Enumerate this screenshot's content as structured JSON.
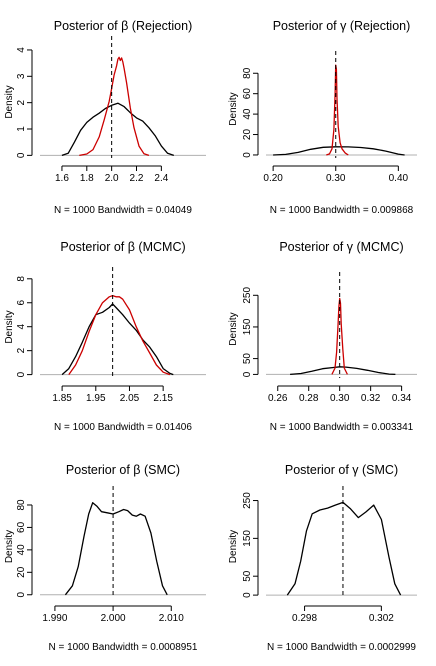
{
  "chart_data": [
    {
      "type": "line",
      "title_prefix": "Posterior of",
      "param": "β",
      "method": "(Rejection)",
      "xlabel": "N = 1000   Bandwidth = 0.04049",
      "ylabel": "Density",
      "xlim": [
        1.52,
        2.55
      ],
      "ylim": [
        -0.1,
        4.15
      ],
      "xticks": [
        {
          "v": 1.6,
          "label": "1.6"
        },
        {
          "v": 1.8,
          "label": "1.8"
        },
        {
          "v": 2.0,
          "label": "2.0"
        },
        {
          "v": 2.2,
          "label": "2.2"
        },
        {
          "v": 2.4,
          "label": "2.4"
        }
      ],
      "yticks": [
        {
          "v": 0,
          "label": "0"
        },
        {
          "v": 1,
          "label": "1"
        },
        {
          "v": 2,
          "label": "2"
        },
        {
          "v": 3,
          "label": "3"
        },
        {
          "v": 4,
          "label": "4"
        }
      ],
      "true_value": 2.0,
      "series": [
        {
          "name": "prior",
          "color": "#000000",
          "x": [
            1.6,
            1.65,
            1.7,
            1.75,
            1.8,
            1.85,
            1.9,
            1.95,
            2.0,
            2.05,
            2.1,
            2.15,
            2.2,
            2.25,
            2.3,
            2.35,
            2.4,
            2.45,
            2.5
          ],
          "y": [
            0.0,
            0.08,
            0.5,
            0.95,
            1.25,
            1.45,
            1.6,
            1.78,
            1.9,
            1.98,
            1.85,
            1.62,
            1.42,
            1.3,
            1.05,
            0.75,
            0.35,
            0.08,
            0.0
          ]
        },
        {
          "name": "posterior",
          "color": "#cc0000",
          "x": [
            1.74,
            1.8,
            1.85,
            1.9,
            1.94,
            1.98,
            2.0,
            2.02,
            2.04,
            2.05,
            2.06,
            2.07,
            2.08,
            2.09,
            2.1,
            2.12,
            2.15,
            2.18,
            2.22,
            2.26,
            2.3
          ],
          "y": [
            0.0,
            0.05,
            0.22,
            0.7,
            1.35,
            2.05,
            2.55,
            3.05,
            3.4,
            3.65,
            3.72,
            3.6,
            3.7,
            3.55,
            3.3,
            2.75,
            1.8,
            1.05,
            0.35,
            0.06,
            0.0
          ]
        }
      ]
    },
    {
      "type": "line",
      "title_prefix": "Posterior of",
      "param": "γ",
      "method": "(Rejection)",
      "xlabel": "N = 1000   Bandwidth = 0.009868",
      "ylabel": "Density",
      "xlim": [
        0.195,
        0.425
      ],
      "ylim": [
        -2,
        92
      ],
      "xticks": [
        {
          "v": 0.2,
          "label": "0.20"
        },
        {
          "v": 0.3,
          "label": "0.30"
        },
        {
          "v": 0.4,
          "label": "0.40"
        }
      ],
      "yticks": [
        {
          "v": 0,
          "label": "0"
        },
        {
          "v": 20,
          "label": "20"
        },
        {
          "v": 40,
          "label": "40"
        },
        {
          "v": 60,
          "label": "60"
        },
        {
          "v": 80,
          "label": "80"
        }
      ],
      "true_value": 0.3,
      "series": [
        {
          "name": "prior",
          "color": "#000000",
          "x": [
            0.2,
            0.22,
            0.24,
            0.26,
            0.28,
            0.3,
            0.32,
            0.34,
            0.36,
            0.38,
            0.4,
            0.41
          ],
          "y": [
            0.0,
            0.5,
            2.5,
            5.5,
            7.5,
            8.0,
            7.9,
            7.3,
            6.0,
            3.8,
            0.8,
            0.0
          ]
        },
        {
          "name": "posterior",
          "color": "#cc0000",
          "x": [
            0.285,
            0.29,
            0.294,
            0.297,
            0.299,
            0.3,
            0.301,
            0.302,
            0.304,
            0.307,
            0.31,
            0.315,
            0.32
          ],
          "y": [
            0.0,
            1.0,
            6.0,
            25.0,
            60.0,
            88.0,
            84.0,
            55.0,
            28.0,
            12.0,
            6.0,
            2.0,
            0.0
          ]
        }
      ]
    },
    {
      "type": "line",
      "title_prefix": "Posterior of",
      "param": "β",
      "method": "(MCMC)",
      "xlabel": "N = 1000   Bandwidth = 0.01406",
      "ylabel": "Density",
      "xlim": [
        1.82,
        2.2
      ],
      "ylim": [
        -0.2,
        8.15
      ],
      "xticks": [
        {
          "v": 1.85,
          "label": "1.85"
        },
        {
          "v": 1.95,
          "label": "1.95"
        },
        {
          "v": 2.05,
          "label": "2.05"
        },
        {
          "v": 2.15,
          "label": "2.15"
        }
      ],
      "yticks": [
        {
          "v": 0,
          "label": "0"
        },
        {
          "v": 2,
          "label": "2"
        },
        {
          "v": 4,
          "label": "4"
        },
        {
          "v": 6,
          "label": "6"
        },
        {
          "v": 8,
          "label": "8"
        }
      ],
      "true_value": 2.0,
      "series": [
        {
          "name": "prior",
          "color": "#000000",
          "x": [
            1.85,
            1.87,
            1.89,
            1.91,
            1.93,
            1.95,
            1.97,
            1.99,
            2.0,
            2.01,
            2.03,
            2.05,
            2.07,
            2.09,
            2.11,
            2.13,
            2.15,
            2.17,
            2.18
          ],
          "y": [
            0.0,
            0.5,
            1.5,
            2.7,
            4.0,
            5.0,
            5.2,
            5.6,
            5.9,
            5.6,
            5.0,
            4.3,
            3.7,
            2.9,
            2.3,
            1.5,
            0.5,
            0.1,
            0.0
          ]
        },
        {
          "name": "posterior",
          "color": "#cc0000",
          "x": [
            1.87,
            1.89,
            1.91,
            1.93,
            1.95,
            1.97,
            1.99,
            2.0,
            2.01,
            2.02,
            2.03,
            2.05,
            2.07,
            2.09,
            2.11,
            2.13,
            2.15,
            2.17
          ],
          "y": [
            0.0,
            0.8,
            2.0,
            3.6,
            5.0,
            6.0,
            6.5,
            6.6,
            6.5,
            6.5,
            6.3,
            5.4,
            4.0,
            2.8,
            1.8,
            0.8,
            0.2,
            0.0
          ]
        }
      ]
    },
    {
      "type": "line",
      "title_prefix": "Posterior of",
      "param": "γ",
      "method": "(MCMC)",
      "xlabel": "N = 1000   Bandwidth = 0.003341",
      "ylabel": "Density",
      "xlim": [
        0.255,
        0.348
      ],
      "ylim": [
        -5,
        292
      ],
      "xticks": [
        {
          "v": 0.26,
          "label": "0.26"
        },
        {
          "v": 0.28,
          "label": "0.28"
        },
        {
          "v": 0.3,
          "label": "0.30"
        },
        {
          "v": 0.32,
          "label": "0.32"
        },
        {
          "v": 0.34,
          "label": "0.34"
        }
      ],
      "yticks": [
        {
          "v": 0,
          "label": "0"
        },
        {
          "v": 50,
          "label": "50"
        },
        {
          "v": 150,
          "label": "150"
        },
        {
          "v": 250,
          "label": "250"
        }
      ],
      "true_value": 0.3,
      "series": [
        {
          "name": "prior",
          "color": "#000000",
          "x": [
            0.268,
            0.275,
            0.282,
            0.289,
            0.296,
            0.3,
            0.304,
            0.311,
            0.318,
            0.325,
            0.332,
            0.336
          ],
          "y": [
            0.0,
            3.0,
            10.0,
            18.0,
            22.0,
            24.0,
            23.0,
            19.0,
            13.0,
            6.0,
            1.0,
            0.0
          ]
        },
        {
          "name": "posterior",
          "color": "#cc0000",
          "x": [
            0.295,
            0.297,
            0.298,
            0.299,
            0.2995,
            0.3,
            0.3005,
            0.301,
            0.302,
            0.303,
            0.305
          ],
          "y": [
            0.0,
            20.0,
            70.0,
            160.0,
            215.0,
            240.0,
            225.0,
            160.0,
            80.0,
            20.0,
            0.0
          ]
        }
      ]
    },
    {
      "type": "line",
      "title_prefix": "Posterior of",
      "param": "β",
      "method": "(SMC)",
      "xlabel": "N = 1000   Bandwidth = 0.0008951",
      "ylabel": "Density",
      "xlim": [
        1.9895,
        2.0115
      ],
      "ylim": [
        -2,
        88
      ],
      "xticks": [
        {
          "v": 1.99,
          "label": "1.990"
        },
        {
          "v": 2.0,
          "label": "2.000"
        },
        {
          "v": 2.01,
          "label": "2.010"
        }
      ],
      "yticks": [
        {
          "v": 0,
          "label": "0"
        },
        {
          "v": 20,
          "label": "20"
        },
        {
          "v": 40,
          "label": "40"
        },
        {
          "v": 60,
          "label": "60"
        },
        {
          "v": 80,
          "label": "80"
        }
      ],
      "true_value": 2.0,
      "series": [
        {
          "name": "posterior",
          "color": "#000000",
          "x": [
            1.9918,
            1.993,
            1.994,
            1.995,
            1.9958,
            1.9965,
            1.9972,
            1.998,
            1.999,
            2.0,
            2.001,
            2.0018,
            2.0025,
            2.0033,
            2.004,
            2.0047,
            2.0055,
            2.0065,
            2.0075,
            2.0085,
            2.0093
          ],
          "y": [
            0.0,
            8.0,
            25.0,
            52.0,
            72.0,
            82.0,
            79.0,
            74.0,
            73.0,
            72.0,
            74.0,
            76.0,
            75.0,
            71.0,
            70.0,
            72.0,
            70.0,
            55.0,
            30.0,
            8.0,
            0.0
          ]
        }
      ]
    },
    {
      "type": "line",
      "title_prefix": "Posterior of",
      "param": "γ",
      "method": "(SMC)",
      "xlabel": "N = 1000   Bandwidth = 0.0002999",
      "ylabel": "Density",
      "xlim": [
        0.2962,
        0.3037
      ],
      "ylim": [
        -5,
        262
      ],
      "xticks": [
        {
          "v": 0.298,
          "label": "0.298"
        },
        {
          "v": 0.302,
          "label": "0.302"
        }
      ],
      "yticks": [
        {
          "v": 0,
          "label": "0"
        },
        {
          "v": 50,
          "label": "50"
        },
        {
          "v": 150,
          "label": "150"
        },
        {
          "v": 250,
          "label": "250"
        }
      ],
      "true_value": 0.3,
      "series": [
        {
          "name": "posterior",
          "color": "#000000",
          "x": [
            0.2971,
            0.2975,
            0.2978,
            0.2981,
            0.2984,
            0.2988,
            0.2992,
            0.2996,
            0.3,
            0.3004,
            0.3008,
            0.3012,
            0.3016,
            0.302,
            0.3024,
            0.3027,
            0.303
          ],
          "y": [
            0.0,
            30.0,
            90.0,
            170.0,
            215.0,
            225.0,
            230.0,
            238.0,
            245.0,
            228.0,
            205.0,
            220.0,
            238.0,
            200.0,
            100.0,
            30.0,
            0.0
          ]
        }
      ]
    }
  ]
}
